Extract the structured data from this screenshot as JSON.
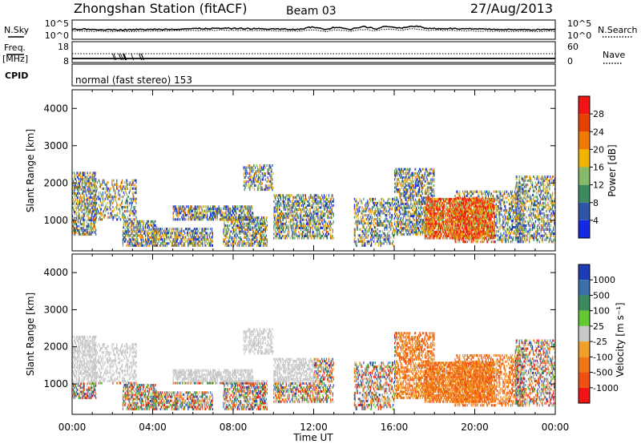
{
  "header": {
    "station": "Zhongshan Station (fitACF)",
    "beam": "Beam 03",
    "date": "27/Aug/2013"
  },
  "strip_labels": {
    "nsky": "N.Sky",
    "nsky_top": "10^5",
    "nsky_bottom": "10^0",
    "nsearch": "N.Search",
    "nsearch_top": "10^5",
    "nsearch_bottom": "10^0",
    "freq_line1": "Freq.",
    "freq_line2": "[MHz]",
    "freq_top": "18",
    "freq_bottom": "8",
    "nave": "Nave",
    "nave_top": "60",
    "nave_bottom": "0",
    "cpid": "CPID",
    "cpid_text": "normal (fast stereo) 153"
  },
  "chart_data": [
    {
      "type": "heatmap",
      "name": "power",
      "ylabel": "Slant Range [km]",
      "ylim": [
        180,
        4500
      ],
      "yticks": [
        "1000",
        "2000",
        "3000",
        "4000"
      ],
      "xticks": [
        "00:00",
        "04:00",
        "08:00",
        "12:00",
        "16:00",
        "20:00",
        "00:00"
      ],
      "colorbar": {
        "label": "Power [dB]",
        "ticks": [
          "4",
          "8",
          "12",
          "16",
          "20",
          "24",
          "28"
        ],
        "colors": [
          "#1428e6",
          "#2e55a8",
          "#3c8a5e",
          "#86b96a",
          "#f0b400",
          "#f07a00",
          "#e64000",
          "#f01414"
        ]
      }
    },
    {
      "type": "heatmap",
      "name": "velocity",
      "ylabel": "Slant Range [km]",
      "ylim": [
        180,
        4500
      ],
      "yticks": [
        "1000",
        "2000",
        "3000",
        "4000"
      ],
      "xticks": [
        "00:00",
        "04:00",
        "08:00",
        "12:00",
        "16:00",
        "20:00",
        "00:00"
      ],
      "xlabel": "Time UT",
      "colorbar": {
        "label": "Velocity [m s⁻¹]",
        "ticks": [
          "1000",
          "500",
          "100",
          "25",
          "-25",
          "-100",
          "-500",
          "-1000"
        ],
        "colors": [
          "#1e3cb4",
          "#3c6eaa",
          "#3c8a5e",
          "#64c832",
          "#c8c8c8",
          "#f0a028",
          "#f07814",
          "#f05014",
          "#f01414"
        ]
      }
    }
  ]
}
